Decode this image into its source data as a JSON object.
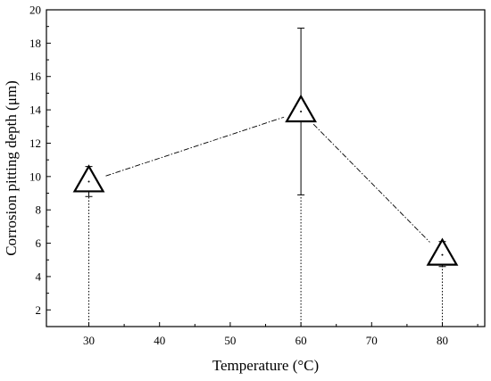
{
  "chart_data": {
    "type": "scatter",
    "xlabel": "Temperature (°C)",
    "ylabel": "Corrosion pitting depth (μm)",
    "xlim": [
      24,
      86
    ],
    "ylim": [
      1,
      20
    ],
    "xticks": [
      30,
      40,
      50,
      60,
      70,
      80
    ],
    "yticks": [
      2,
      4,
      6,
      8,
      10,
      12,
      14,
      16,
      18,
      20
    ],
    "grid": false,
    "marker": "triangle",
    "connect_points": "dash-dot line",
    "series": [
      {
        "points": [
          {
            "x": 30,
            "y": 9.7,
            "err_low": 8.8,
            "err_high": 10.6
          },
          {
            "x": 60,
            "y": 13.9,
            "err_low": 8.9,
            "err_high": 18.9
          },
          {
            "x": 80,
            "y": 5.3,
            "err_low": 4.6,
            "err_high": 6.1
          }
        ]
      }
    ]
  }
}
